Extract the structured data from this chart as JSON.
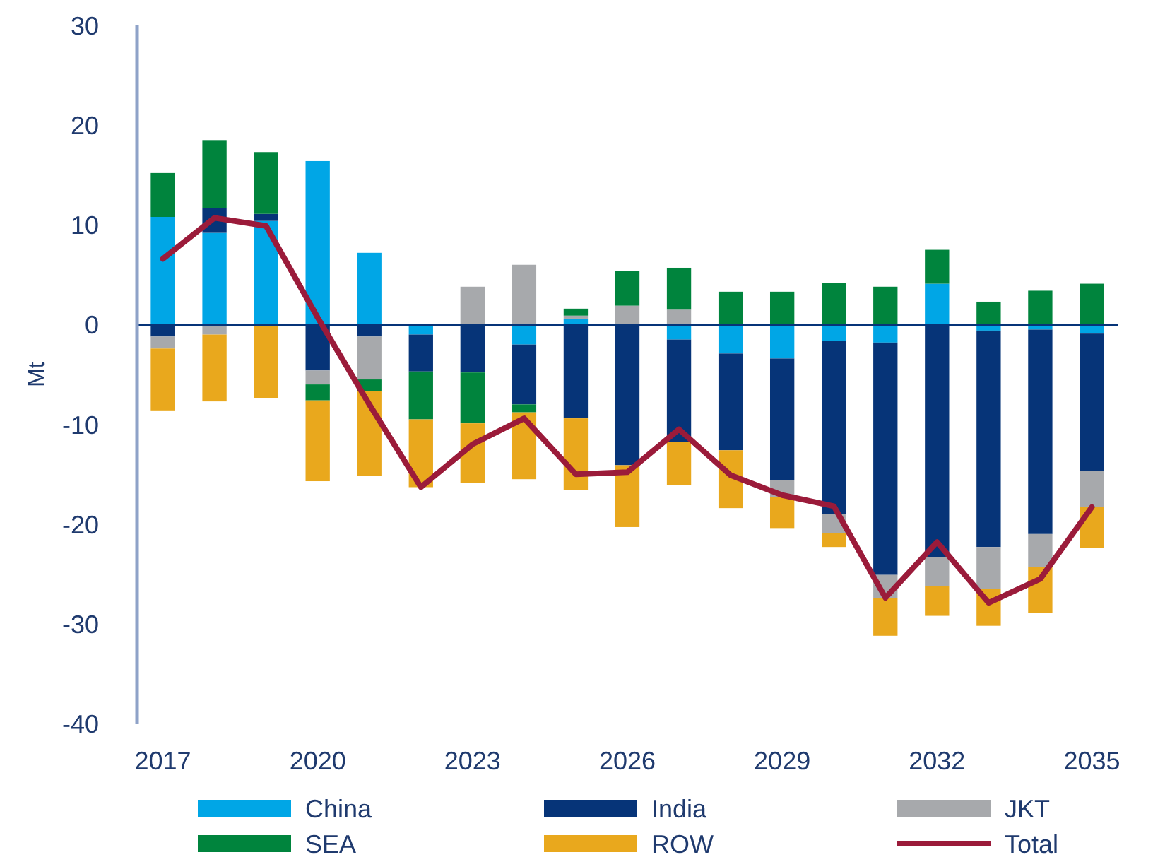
{
  "chart_data": {
    "type": "bar",
    "stacked": true,
    "ylabel": "Mt",
    "categories": [
      "2017",
      null,
      null,
      "2020",
      null,
      null,
      "2023",
      null,
      null,
      "2026",
      null,
      null,
      "2029",
      null,
      null,
      "2032",
      null,
      null,
      "2035"
    ],
    "ylim": [
      -40,
      30
    ],
    "yticks": [
      -40,
      -30,
      -20,
      -10,
      0,
      10,
      20,
      30
    ],
    "grid": false,
    "legend": "bottom",
    "ref_lines": [
      {
        "axis": "y",
        "value": 0,
        "color": "#063478",
        "line_style": "solid"
      }
    ],
    "series": [
      {
        "name": "China",
        "color": "#00a6e6",
        "values": [
          10.8,
          9.2,
          10.4,
          16.4,
          7.2,
          -1.0,
          0,
          -2.0,
          0.6,
          0,
          -1.5,
          -2.9,
          -3.4,
          -1.6,
          -1.8,
          4.1,
          -0.6,
          -0.5,
          -0.9
        ]
      },
      {
        "name": "India",
        "color": "#063478",
        "values": [
          -1.2,
          2.5,
          0.7,
          -4.6,
          -1.2,
          -3.7,
          -4.8,
          -6.0,
          -9.4,
          -14.1,
          -10.3,
          -9.7,
          -12.2,
          -17.4,
          -23.3,
          -23.3,
          -21.7,
          -20.5,
          -13.8
        ]
      },
      {
        "name": "JKT",
        "color": "#a7a9ac",
        "values": [
          -1.2,
          -1.0,
          0,
          -1.4,
          -4.3,
          0,
          3.8,
          6.0,
          0.3,
          1.9,
          1.5,
          0,
          -1.7,
          -1.9,
          -2.3,
          -2.9,
          -4.2,
          -3.3,
          -3.6
        ]
      },
      {
        "name": "SEA",
        "color": "#00843d",
        "values": [
          4.4,
          6.8,
          6.2,
          -1.6,
          -1.2,
          -4.8,
          -5.1,
          -0.8,
          0.7,
          3.5,
          4.2,
          3.3,
          3.3,
          4.2,
          3.8,
          3.4,
          2.3,
          3.4,
          4.1
        ]
      },
      {
        "name": "ROW",
        "color": "#e9a81d",
        "values": [
          -6.2,
          -6.7,
          -7.4,
          -8.1,
          -8.5,
          -6.8,
          -6.0,
          -6.7,
          -7.2,
          -6.2,
          -4.3,
          -5.8,
          -3.1,
          -1.4,
          -3.8,
          -3.0,
          -3.7,
          -4.6,
          -4.1
        ]
      },
      {
        "name": "Total",
        "type": "line",
        "color": "#9b1b3a",
        "marker": "none",
        "line_style": "solid",
        "values": [
          6.6,
          10.7,
          9.9,
          0.7,
          -8.0,
          -16.3,
          -12.0,
          -9.4,
          -15.0,
          -14.8,
          -10.5,
          -15.1,
          -17.1,
          -18.2,
          -27.4,
          -21.8,
          -27.9,
          -25.5,
          -18.3
        ]
      }
    ]
  }
}
